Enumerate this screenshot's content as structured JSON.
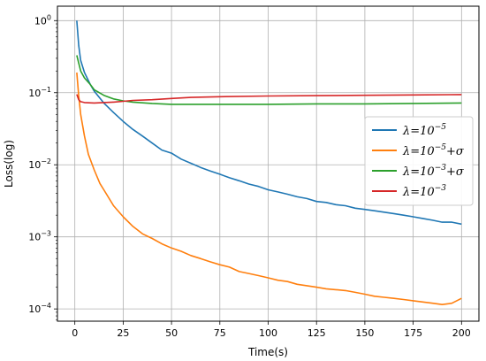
{
  "chart_data": {
    "type": "line",
    "title": "",
    "xlabel": "Time(s)",
    "ylabel": "Loss(log)",
    "xlim": [
      -9,
      209
    ],
    "ylim_log10": [
      -4.17,
      0.2
    ],
    "yscale": "log",
    "grid": true,
    "legend_position": "right",
    "x_ticks": [
      {
        "value": 0,
        "label": "0"
      },
      {
        "value": 25,
        "label": "25"
      },
      {
        "value": 50,
        "label": "50"
      },
      {
        "value": 75,
        "label": "75"
      },
      {
        "value": 100,
        "label": "100"
      },
      {
        "value": 125,
        "label": "125"
      },
      {
        "value": 150,
        "label": "150"
      },
      {
        "value": 175,
        "label": "175"
      },
      {
        "value": 200,
        "label": "200"
      }
    ],
    "y_ticks": [
      {
        "value": 1,
        "base": "10",
        "exp": "0"
      },
      {
        "value": 0.1,
        "base": "10",
        "exp": "−1"
      },
      {
        "value": 0.01,
        "base": "10",
        "exp": "−2"
      },
      {
        "value": 0.001,
        "base": "10",
        "exp": "−3"
      },
      {
        "value": 0.0001,
        "base": "10",
        "exp": "−4"
      }
    ],
    "series": [
      {
        "name": "λ=10^-5",
        "legend": {
          "pre": "λ=10",
          "sup": "−5",
          "post": ""
        },
        "color": "#1f77b4",
        "x": [
          1,
          2,
          3,
          5,
          8,
          10,
          15,
          20,
          25,
          30,
          35,
          40,
          45,
          50,
          55,
          60,
          65,
          70,
          75,
          80,
          85,
          90,
          95,
          100,
          105,
          110,
          115,
          120,
          125,
          130,
          135,
          140,
          145,
          150,
          155,
          160,
          165,
          170,
          175,
          180,
          185,
          190,
          195,
          200
        ],
        "y": [
          1.0,
          0.45,
          0.28,
          0.19,
          0.13,
          0.105,
          0.072,
          0.053,
          0.04,
          0.031,
          0.025,
          0.02,
          0.016,
          0.0145,
          0.012,
          0.0105,
          0.0092,
          0.0082,
          0.0074,
          0.0066,
          0.006,
          0.0054,
          0.005,
          0.0045,
          0.0042,
          0.0039,
          0.0036,
          0.0034,
          0.0031,
          0.003,
          0.0028,
          0.0027,
          0.0025,
          0.0024,
          0.0023,
          0.0022,
          0.0021,
          0.002,
          0.0019,
          0.0018,
          0.0017,
          0.0016,
          0.0016,
          0.0015
        ]
      },
      {
        "name": "λ=10^-5+σ",
        "legend": {
          "pre": "λ=10",
          "sup": "−5",
          "post": "+σ"
        },
        "color": "#ff7f0e",
        "x": [
          1,
          2,
          3,
          5,
          7,
          10,
          13,
          15,
          20,
          25,
          30,
          35,
          40,
          45,
          50,
          55,
          60,
          65,
          70,
          75,
          80,
          85,
          90,
          95,
          100,
          105,
          110,
          115,
          120,
          125,
          130,
          135,
          140,
          145,
          150,
          155,
          160,
          165,
          170,
          175,
          180,
          185,
          190,
          195,
          200
        ],
        "y": [
          0.19,
          0.09,
          0.05,
          0.025,
          0.014,
          0.0085,
          0.0055,
          0.0045,
          0.0027,
          0.0019,
          0.0014,
          0.0011,
          0.00095,
          0.0008,
          0.0007,
          0.00063,
          0.00055,
          0.0005,
          0.00045,
          0.00041,
          0.00038,
          0.00033,
          0.00031,
          0.00029,
          0.00027,
          0.00025,
          0.00024,
          0.00022,
          0.00021,
          0.0002,
          0.00019,
          0.000185,
          0.00018,
          0.00017,
          0.00016,
          0.00015,
          0.000145,
          0.00014,
          0.000135,
          0.00013,
          0.000125,
          0.00012,
          0.000115,
          0.00012,
          0.00014
        ]
      },
      {
        "name": "λ=10^-3+σ",
        "legend": {
          "pre": "λ=10",
          "sup": "−3",
          "post": "+σ"
        },
        "color": "#2ca02c",
        "x": [
          1,
          3,
          5,
          8,
          10,
          15,
          20,
          25,
          30,
          40,
          50,
          75,
          100,
          125,
          150,
          175,
          200
        ],
        "y": [
          0.33,
          0.2,
          0.16,
          0.13,
          0.11,
          0.092,
          0.082,
          0.077,
          0.074,
          0.071,
          0.069,
          0.069,
          0.069,
          0.07,
          0.07,
          0.071,
          0.072
        ]
      },
      {
        "name": "λ=10^-3",
        "legend": {
          "pre": "λ=10",
          "sup": "−3",
          "post": ""
        },
        "color": "#d62728",
        "x": [
          1,
          2,
          3,
          5,
          10,
          15,
          20,
          25,
          30,
          40,
          50,
          60,
          75,
          100,
          125,
          150,
          175,
          200
        ],
        "y": [
          0.095,
          0.08,
          0.075,
          0.073,
          0.072,
          0.073,
          0.074,
          0.076,
          0.078,
          0.08,
          0.083,
          0.086,
          0.088,
          0.09,
          0.091,
          0.092,
          0.093,
          0.094
        ]
      }
    ]
  }
}
